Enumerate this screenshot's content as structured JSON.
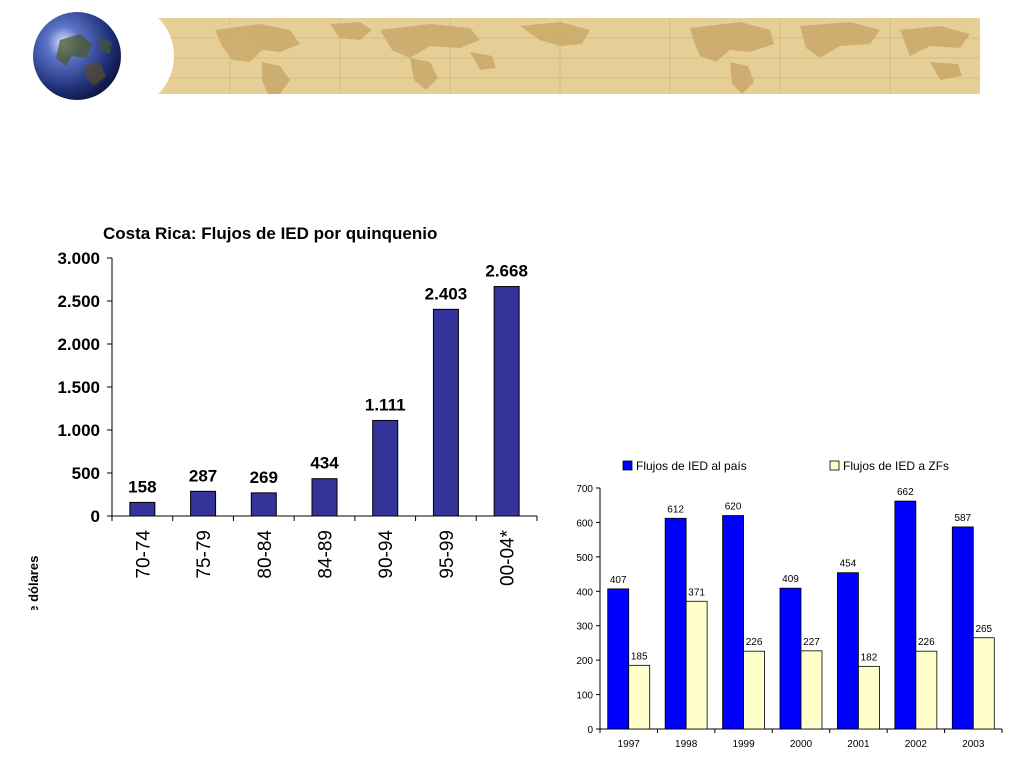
{
  "colors": {
    "banner_bg": "#e6cf96",
    "banner_land": "#c9a96a",
    "bar_primary": "#333399",
    "bar_blue": "#0000ff",
    "bar_cream": "#ffffcc"
  },
  "chart_data": [
    {
      "type": "bar",
      "title": "Costa Rica: Flujos de IED por quinquenio",
      "ylabel": "Millones de dólares",
      "categories": [
        "70-74",
        "75-79",
        "80-84",
        "84-89",
        "90-94",
        "95-99",
        "00-04*"
      ],
      "values": [
        158,
        287,
        269,
        434,
        1111,
        2403,
        2668
      ],
      "data_labels": [
        "158",
        "287",
        "269",
        "434",
        "1.111",
        "2.403",
        "2.668"
      ],
      "ylim": [
        0,
        3000
      ],
      "yticks": [
        0,
        500,
        1000,
        1500,
        2000,
        2500,
        3000
      ],
      "ytick_labels": [
        "0",
        "500",
        "1.000",
        "1.500",
        "2.000",
        "2.500",
        "3.000"
      ],
      "grid": false
    },
    {
      "type": "bar",
      "categories": [
        "1997",
        "1998",
        "1999",
        "2000",
        "2001",
        "2002",
        "2003"
      ],
      "series": [
        {
          "name": "Flujos de IED al país",
          "values": [
            407,
            612,
            620,
            409,
            454,
            662,
            587
          ]
        },
        {
          "name": "Flujos de IED a ZFs",
          "values": [
            185,
            371,
            226,
            227,
            182,
            226,
            265
          ]
        }
      ],
      "ylim": [
        0,
        700
      ],
      "yticks": [
        0,
        100,
        200,
        300,
        400,
        500,
        600,
        700
      ],
      "legend": "top",
      "grid": false
    }
  ]
}
